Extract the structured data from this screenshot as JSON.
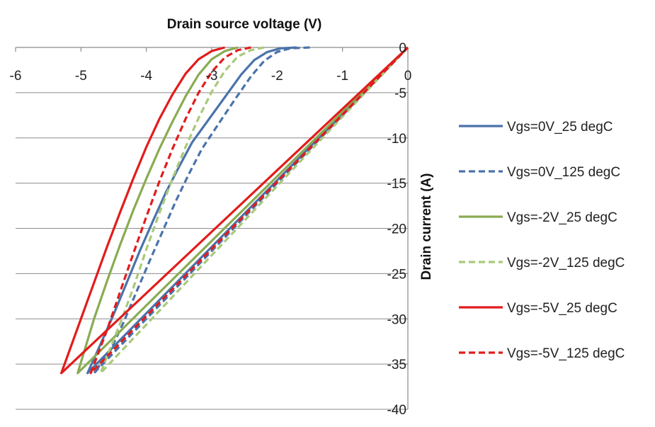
{
  "chart_data": {
    "type": "line",
    "title": "Drain  source voltage (V)",
    "xlabel": "Drain  source voltage (V)",
    "ylabel": "Drain current (A)",
    "xlim": [
      -6,
      0
    ],
    "ylim": [
      -40,
      0
    ],
    "x_ticks": [
      -6,
      -5,
      -4,
      -3,
      -2,
      -1,
      0
    ],
    "y_ticks": [
      0,
      -5,
      -10,
      -15,
      -20,
      -25,
      -30,
      -35,
      -40
    ],
    "grid": "horizontal",
    "legend_position": "right",
    "series": [
      {
        "name": "Vgs=0V_25 degC",
        "color": "#4a73aa",
        "dash": "solid",
        "x": [
          -1.7,
          -1.95,
          -2.15,
          -2.35,
          -2.55,
          -2.8,
          -3.05,
          -3.3,
          -3.5,
          -3.7,
          -3.9,
          -4.1,
          -4.3,
          -4.5,
          -4.7,
          -4.9
        ],
        "y": [
          0,
          -0.1,
          -0.5,
          -1.4,
          -3.0,
          -5.5,
          -8.0,
          -10.5,
          -13.2,
          -16.0,
          -19.2,
          -22.5,
          -26.0,
          -29.5,
          -32.8,
          -36
        ]
      },
      {
        "name": "Vgs=0V_125 degC",
        "color": "#4a73aa",
        "dash": "dashed",
        "x": [
          -1.5,
          -1.8,
          -2.0,
          -2.2,
          -2.4,
          -2.65,
          -2.9,
          -3.15,
          -3.35,
          -3.55,
          -3.75,
          -3.95,
          -4.15,
          -4.35,
          -4.55,
          -4.8
        ],
        "y": [
          0,
          -0.1,
          -0.5,
          -1.5,
          -3.2,
          -5.8,
          -8.5,
          -11.2,
          -14.0,
          -17.0,
          -20.3,
          -23.6,
          -27.0,
          -30.4,
          -33.5,
          -36
        ]
      },
      {
        "name": "Vgs=-2V_25 degC",
        "color": "#8aab52",
        "dash": "solid",
        "x": [
          -2.6,
          -2.8,
          -3.0,
          -3.2,
          -3.4,
          -3.6,
          -3.8,
          -4.0,
          -4.2,
          -4.4,
          -4.6,
          -4.8,
          -5.05
        ],
        "y": [
          0,
          -0.4,
          -1.3,
          -3.0,
          -5.4,
          -8.2,
          -11.2,
          -14.5,
          -18.0,
          -21.8,
          -25.8,
          -30.0,
          -36
        ]
      },
      {
        "name": "Vgs=-2V_125 degC",
        "color": "#a9c97a",
        "dash": "dashed",
        "x": [
          -2.2,
          -2.4,
          -2.6,
          -2.8,
          -3.0,
          -3.2,
          -3.4,
          -3.6,
          -3.8,
          -4.0,
          -4.2,
          -4.4,
          -4.7
        ],
        "y": [
          0,
          -0.3,
          -1.0,
          -2.6,
          -4.9,
          -7.8,
          -11.0,
          -14.5,
          -18.3,
          -22.3,
          -26.6,
          -30.5,
          -36
        ]
      },
      {
        "name": "Vgs=-5V_25 degC",
        "color": "#e21c1c",
        "dash": "solid",
        "x": [
          -2.8,
          -3.0,
          -3.2,
          -3.4,
          -3.6,
          -3.8,
          -4.0,
          -4.2,
          -4.4,
          -4.6,
          -4.8,
          -5.0,
          -5.3
        ],
        "y": [
          0,
          -0.4,
          -1.3,
          -2.9,
          -5.2,
          -7.9,
          -11.0,
          -14.5,
          -18.2,
          -22.0,
          -26.0,
          -30.0,
          -36
        ]
      },
      {
        "name": "Vgs=-5V_125 degC",
        "color": "#e21c1c",
        "dash": "dashed",
        "x": [
          -2.4,
          -2.6,
          -2.8,
          -3.0,
          -3.2,
          -3.4,
          -3.6,
          -3.8,
          -4.0,
          -4.2,
          -4.4,
          -4.6,
          -4.85
        ],
        "y": [
          0,
          -0.3,
          -1.1,
          -2.7,
          -5.0,
          -7.9,
          -11.2,
          -14.8,
          -18.7,
          -22.8,
          -27.0,
          -31.2,
          -36
        ]
      }
    ]
  }
}
